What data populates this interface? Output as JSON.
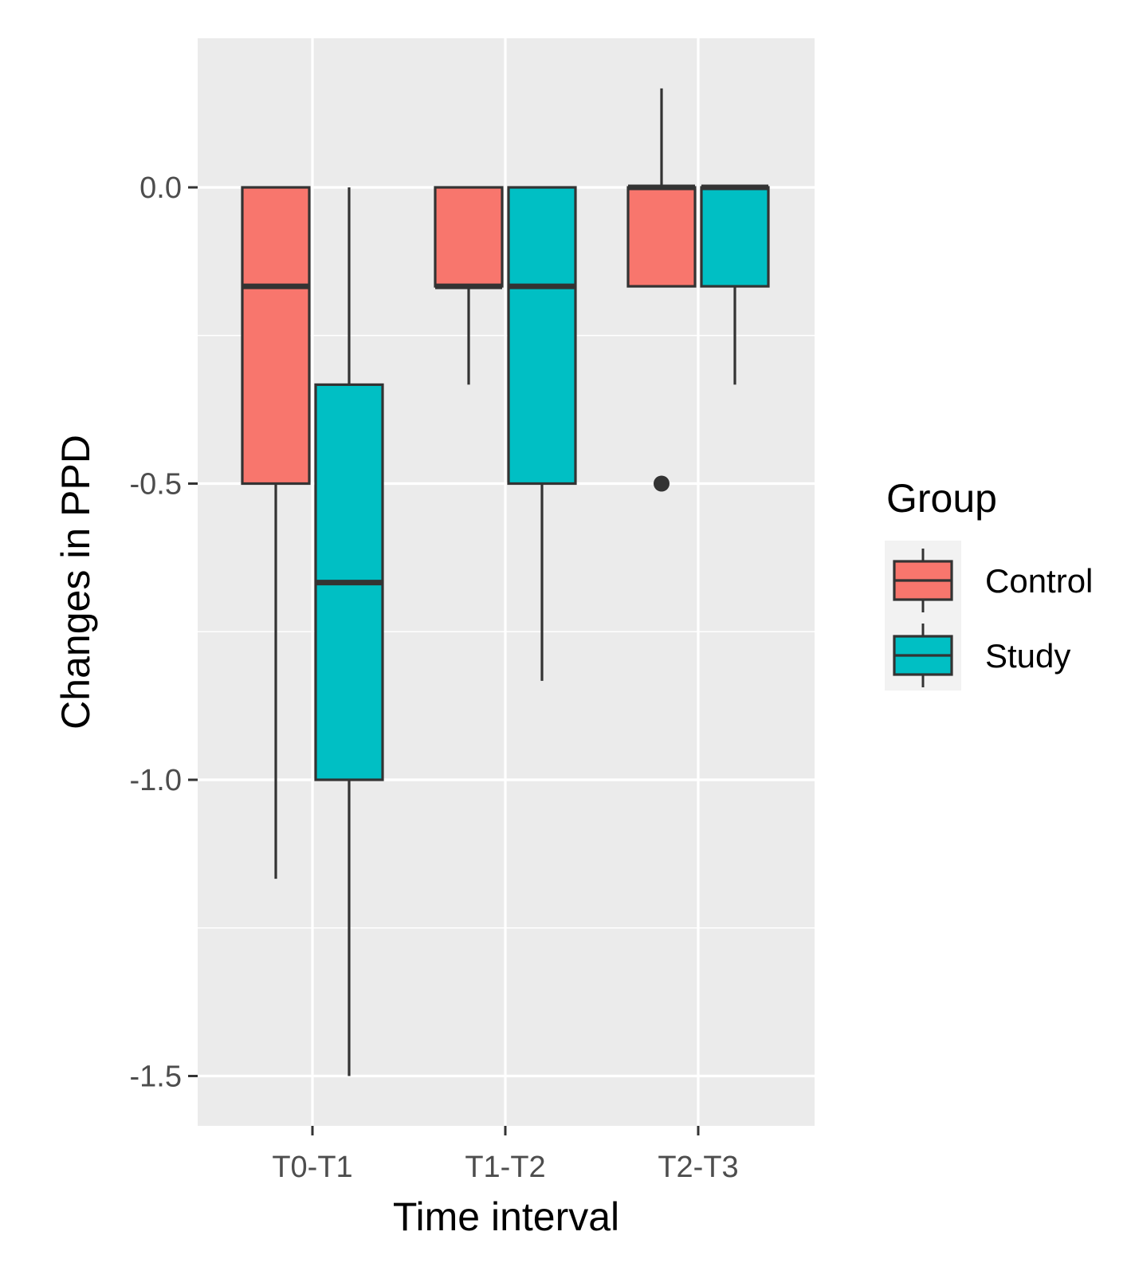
{
  "chart_data": {
    "type": "box",
    "xlabel": "Time interval",
    "ylabel": "Changes in PPD",
    "categories": [
      "T0-T1",
      "T1-T2",
      "T2-T3"
    ],
    "ylim": [
      -1.58,
      0.25
    ],
    "yticks": [
      0.0,
      -0.5,
      -1.0,
      -1.5
    ],
    "ytick_labels": [
      "0.0",
      "-0.5",
      "-1.0",
      "-1.5"
    ],
    "grid": true,
    "legend": {
      "title": "Group",
      "position": "right"
    },
    "series": [
      {
        "name": "Control",
        "color": "#F8766D",
        "boxes": [
          {
            "category": "T0-T1",
            "whisker_low": -1.167,
            "q1": -0.5,
            "median": -0.167,
            "q3": 0.0,
            "whisker_high": 0.0,
            "outliers": []
          },
          {
            "category": "T1-T2",
            "whisker_low": -0.333,
            "q1": -0.167,
            "median": -0.167,
            "q3": 0.0,
            "whisker_high": 0.0,
            "outliers": []
          },
          {
            "category": "T2-T3",
            "whisker_low": -0.167,
            "q1": -0.167,
            "median": 0.0,
            "q3": 0.0,
            "whisker_high": 0.167,
            "outliers": [
              -0.5
            ]
          }
        ]
      },
      {
        "name": "Study",
        "color": "#00BFC4",
        "boxes": [
          {
            "category": "T0-T1",
            "whisker_low": -1.5,
            "q1": -1.0,
            "median": -0.667,
            "q3": -0.333,
            "whisker_high": 0.0,
            "outliers": []
          },
          {
            "category": "T1-T2",
            "whisker_low": -0.833,
            "q1": -0.5,
            "median": -0.167,
            "q3": 0.0,
            "whisker_high": 0.0,
            "outliers": []
          },
          {
            "category": "T2-T3",
            "whisker_low": -0.333,
            "q1": -0.167,
            "median": 0.0,
            "q3": 0.0,
            "whisker_high": 0.0,
            "outliers": []
          }
        ]
      }
    ]
  }
}
